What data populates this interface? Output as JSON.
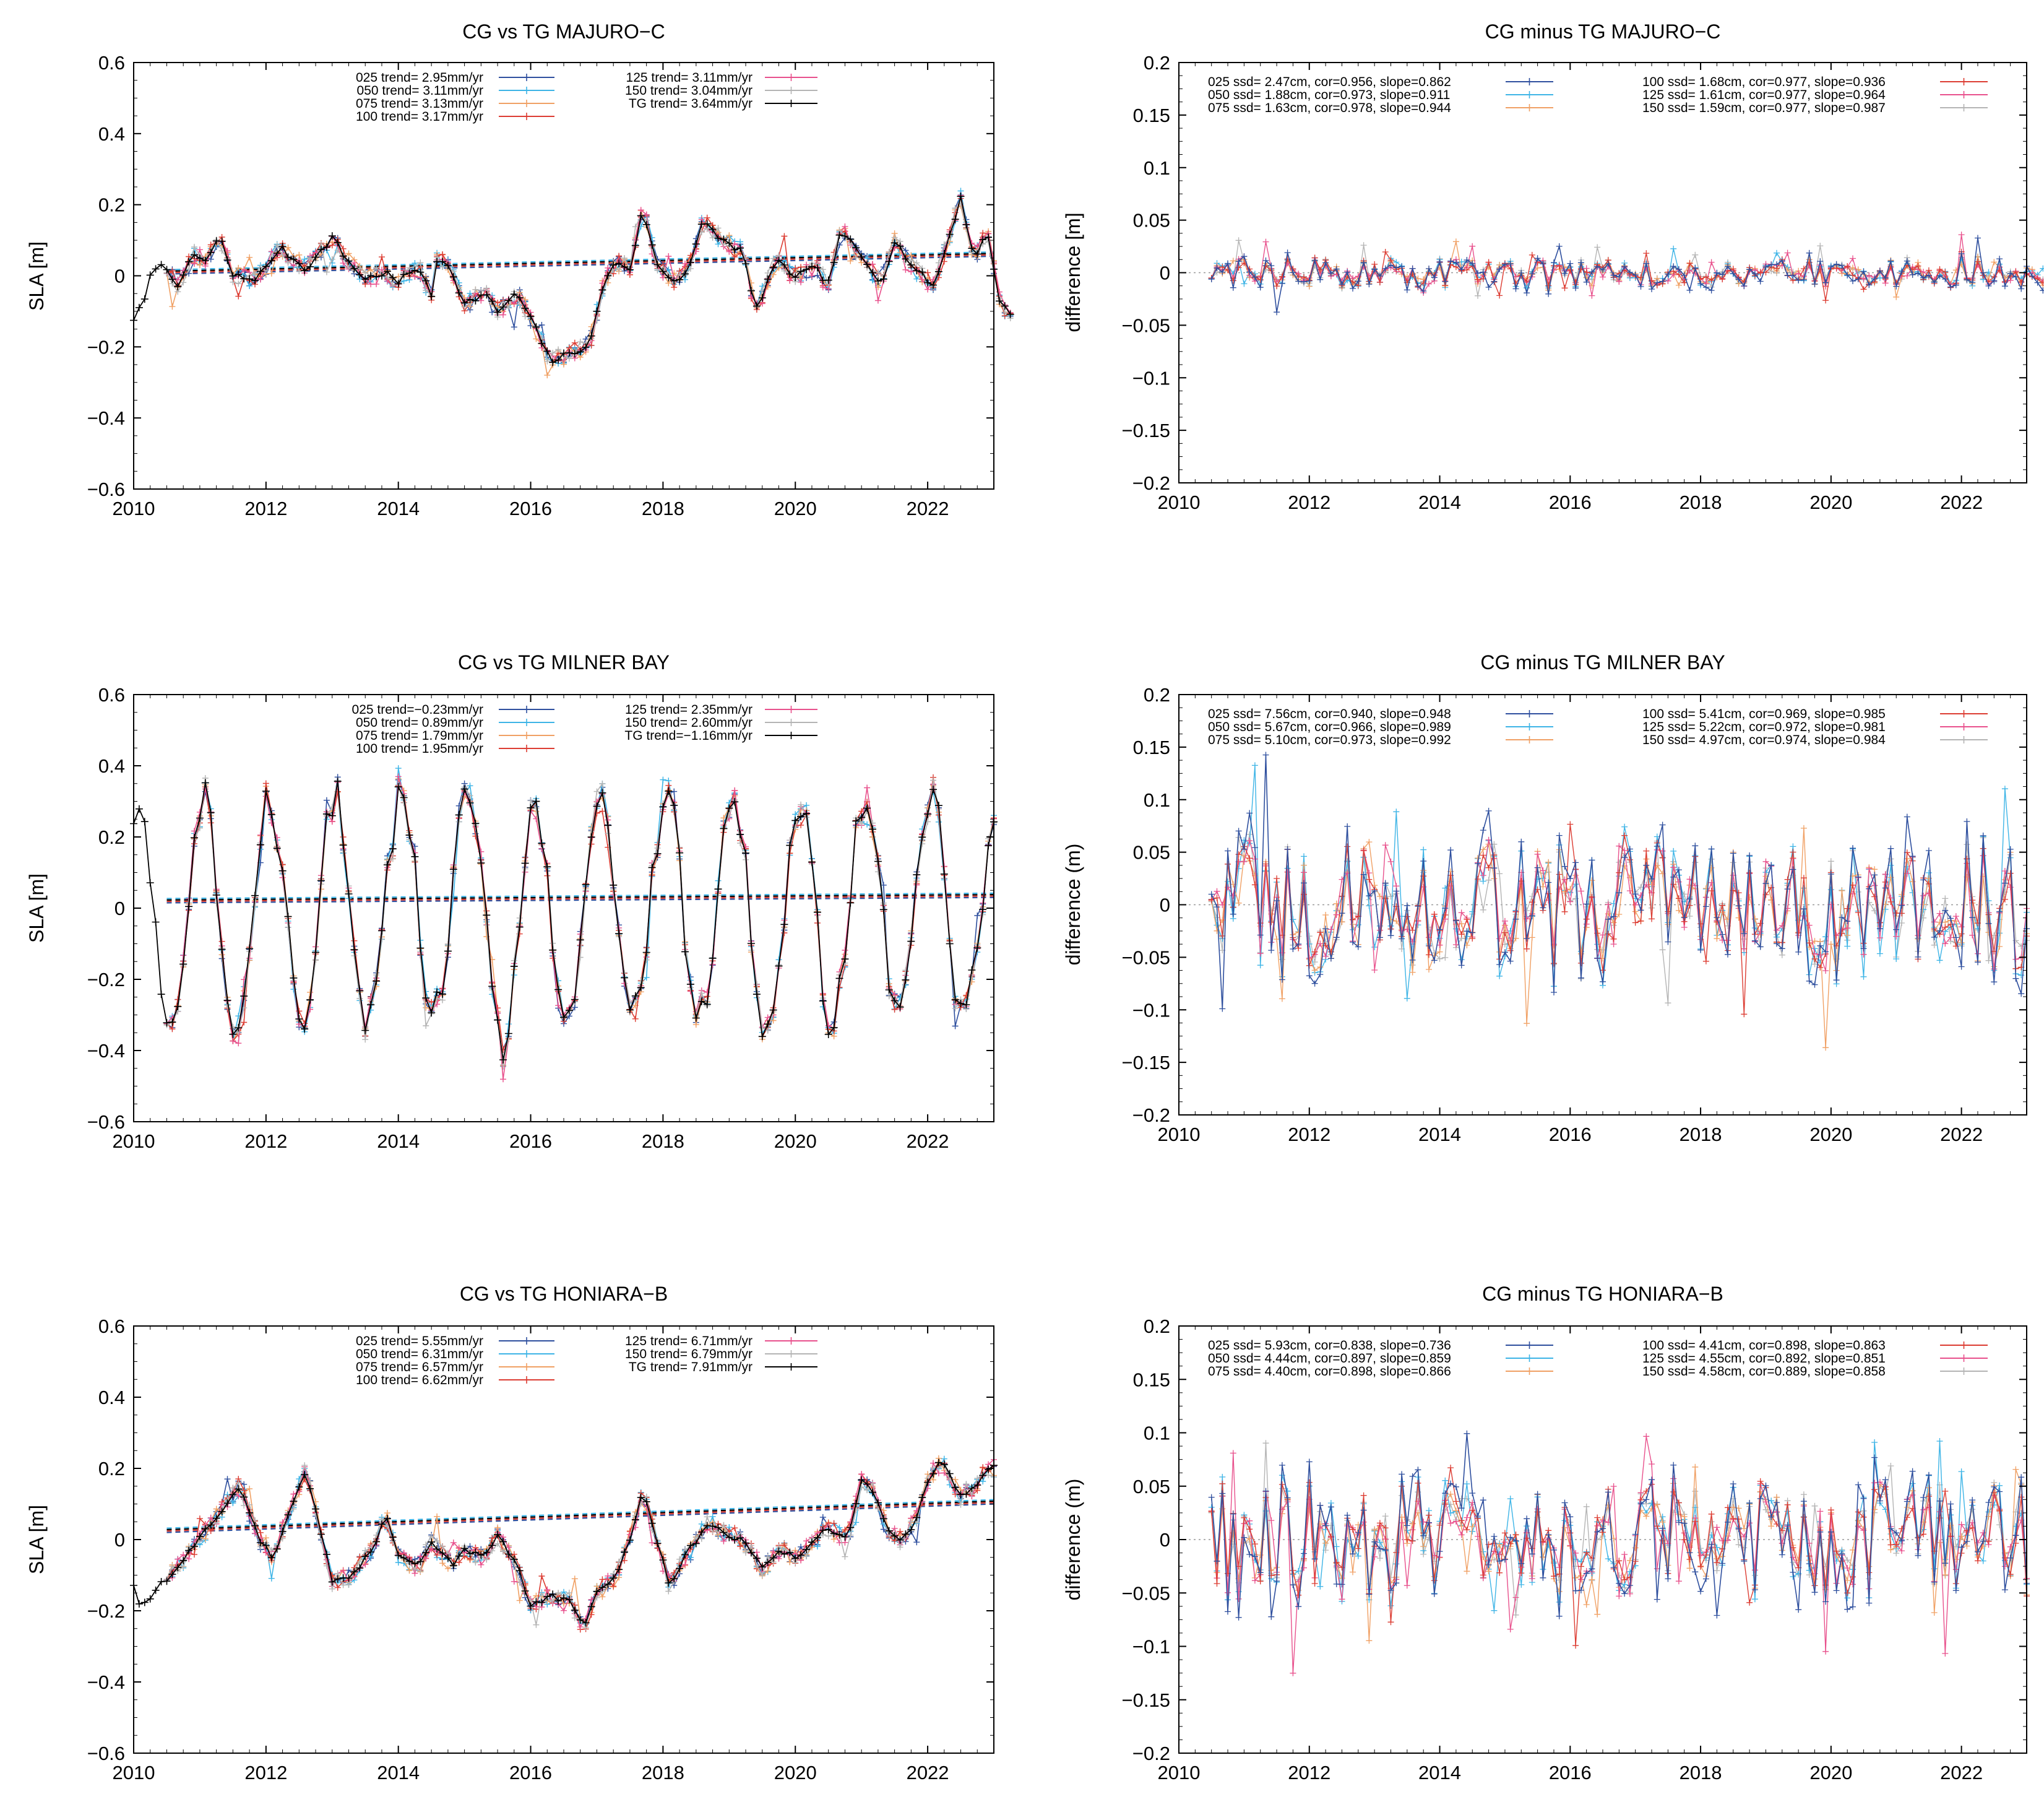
{
  "colors": {
    "s025": "#2e4f9e",
    "s050": "#3db4e6",
    "s075": "#f0a064",
    "s100": "#dc3c32",
    "s125": "#e8508c",
    "s150": "#b4b4b4",
    "tg": "#000000",
    "zero": "#999999"
  },
  "chart_data": [
    {
      "id": "majuro-sla",
      "type": "line",
      "title": "CG vs TG MAJURO−C",
      "ylabel": "SLA [m]",
      "xlim": [
        2010,
        2023
      ],
      "ylim": [
        -0.6,
        0.6
      ],
      "xticks": [
        "2010",
        "2012",
        "2014",
        "2016",
        "2018",
        "2020",
        "2022"
      ],
      "yticks": [
        "0.6",
        "0.4",
        "0.2",
        "0",
        "−0.2",
        "−0.4",
        "−0.6"
      ],
      "legend": [
        {
          "label": "025 trend= 2.95mm/yr",
          "color": "s025"
        },
        {
          "label": "050 trend= 3.11mm/yr",
          "color": "s050"
        },
        {
          "label": "075 trend= 3.13mm/yr",
          "color": "s075"
        },
        {
          "label": "100 trend= 3.17mm/yr",
          "color": "s100"
        },
        {
          "label": "125 trend= 3.11mm/yr",
          "color": "s125"
        },
        {
          "label": "150 trend= 3.04mm/yr",
          "color": "s150"
        },
        {
          "label": "TG trend= 3.64mm/yr",
          "color": "tg"
        }
      ],
      "trend": [
        0.005,
        0.055
      ],
      "cg_start": 2010.5,
      "tg_start": 2010.0,
      "anchors": [
        [
          2010.0,
          -0.12
        ],
        [
          2010.15,
          -0.08
        ],
        [
          2010.3,
          0.03
        ],
        [
          2010.5,
          0.02
        ],
        [
          2010.7,
          -0.03
        ],
        [
          2010.9,
          0.06
        ],
        [
          2011.1,
          0.04
        ],
        [
          2011.3,
          0.11
        ],
        [
          2011.5,
          0.0
        ],
        [
          2011.8,
          -0.01
        ],
        [
          2012.0,
          0.02
        ],
        [
          2012.2,
          0.08
        ],
        [
          2012.4,
          0.05
        ],
        [
          2012.6,
          0.02
        ],
        [
          2012.8,
          0.06
        ],
        [
          2013.0,
          0.11
        ],
        [
          2013.2,
          0.05
        ],
        [
          2013.5,
          -0.01
        ],
        [
          2013.8,
          0.01
        ],
        [
          2014.0,
          -0.02
        ],
        [
          2014.3,
          0.03
        ],
        [
          2014.5,
          -0.06
        ],
        [
          2014.6,
          0.06
        ],
        [
          2014.8,
          0.02
        ],
        [
          2015.0,
          -0.08
        ],
        [
          2015.3,
          -0.05
        ],
        [
          2015.5,
          -0.1
        ],
        [
          2015.8,
          -0.05
        ],
        [
          2016.0,
          -0.12
        ],
        [
          2016.3,
          -0.24
        ],
        [
          2016.6,
          -0.22
        ],
        [
          2016.9,
          -0.19
        ],
        [
          2017.1,
          -0.02
        ],
        [
          2017.3,
          0.04
        ],
        [
          2017.5,
          0.02
        ],
        [
          2017.7,
          0.19
        ],
        [
          2017.9,
          0.03
        ],
        [
          2018.2,
          -0.02
        ],
        [
          2018.4,
          0.03
        ],
        [
          2018.6,
          0.15
        ],
        [
          2018.9,
          0.1
        ],
        [
          2019.2,
          0.07
        ],
        [
          2019.4,
          -0.1
        ],
        [
          2019.7,
          0.04
        ],
        [
          2020.0,
          0.0
        ],
        [
          2020.3,
          0.02
        ],
        [
          2020.5,
          -0.02
        ],
        [
          2020.7,
          0.13
        ],
        [
          2021.0,
          0.05
        ],
        [
          2021.3,
          -0.02
        ],
        [
          2021.5,
          0.1
        ],
        [
          2021.8,
          0.02
        ],
        [
          2022.1,
          -0.03
        ],
        [
          2022.5,
          0.22
        ],
        [
          2022.7,
          0.05
        ],
        [
          2022.9,
          0.12
        ],
        [
          2023.1,
          -0.08
        ],
        [
          2023.2,
          -0.1
        ]
      ],
      "span": [
        2010,
        2023.3
      ]
    },
    {
      "id": "majuro-diff",
      "type": "line",
      "title": "CG minus TG MAJURO−C",
      "ylabel": "difference [m]",
      "xlim": [
        2010,
        2023
      ],
      "ylim": [
        -0.2,
        0.2
      ],
      "xticks": [
        "2010",
        "2012",
        "2014",
        "2016",
        "2018",
        "2020",
        "2022"
      ],
      "yticks": [
        "0.2",
        "0.15",
        "0.1",
        "0.05",
        "0",
        "−0.05",
        "−0.1",
        "−0.15",
        "−0.2"
      ],
      "legend": [
        {
          "label": "025 ssd= 2.47cm, cor=0.956, slope=0.862",
          "color": "s025"
        },
        {
          "label": "050 ssd= 1.88cm, cor=0.973, slope=0.911",
          "color": "s050"
        },
        {
          "label": "075 ssd= 1.63cm, cor=0.978, slope=0.944",
          "color": "s075"
        },
        {
          "label": "100 ssd= 1.68cm, cor=0.977, slope=0.936",
          "color": "s100"
        },
        {
          "label": "125 ssd= 1.61cm, cor=0.977, slope=0.964",
          "color": "s125"
        },
        {
          "label": "150 ssd= 1.59cm, cor=0.977, slope=0.987",
          "color": "s150"
        }
      ],
      "noise": 0.012,
      "noiseHi": 0.025,
      "span": [
        2010.5,
        2023.3
      ]
    },
    {
      "id": "milner-sla",
      "type": "line",
      "title": "CG vs TG MILNER BAY",
      "ylabel": "SLA [m]",
      "xlim": [
        2010,
        2023
      ],
      "ylim": [
        -0.6,
        0.6
      ],
      "xticks": [
        "2010",
        "2012",
        "2014",
        "2016",
        "2018",
        "2020",
        "2022"
      ],
      "yticks": [
        "0.6",
        "0.4",
        "0.2",
        "0",
        "−0.2",
        "−0.4",
        "−0.6"
      ],
      "legend": [
        {
          "label": "025 trend=−0.23mm/yr",
          "color": "s025"
        },
        {
          "label": "050 trend= 0.89mm/yr",
          "color": "s050"
        },
        {
          "label": "075 trend= 1.79mm/yr",
          "color": "s075"
        },
        {
          "label": "100 trend= 1.95mm/yr",
          "color": "s100"
        },
        {
          "label": "125 trend= 2.35mm/yr",
          "color": "s125"
        },
        {
          "label": "150 trend= 2.60mm/yr",
          "color": "s150"
        },
        {
          "label": "TG trend=−1.16mm/yr",
          "color": "tg"
        }
      ],
      "trend": [
        0.015,
        0.03
      ],
      "cg_start": 2010.5,
      "tg_start": 2010.0,
      "seasonal": {
        "amp": 0.31,
        "peak": 2011.05
      },
      "span": [
        2010,
        2023
      ]
    },
    {
      "id": "milner-diff",
      "type": "line",
      "title": "CG minus TG MILNER BAY",
      "ylabel": "difference (m)",
      "xlim": [
        2010,
        2023
      ],
      "ylim": [
        -0.2,
        0.2
      ],
      "xticks": [
        "2010",
        "2012",
        "2014",
        "2016",
        "2018",
        "2020",
        "2022"
      ],
      "yticks": [
        "0.2",
        "0.15",
        "0.1",
        "0.05",
        "0",
        "−0.05",
        "−0.1",
        "−0.15",
        "−0.2"
      ],
      "legend": [
        {
          "label": "025 ssd= 7.56cm, cor=0.940, slope=0.948",
          "color": "s025"
        },
        {
          "label": "050 ssd= 5.67cm, cor=0.966, slope=0.989",
          "color": "s050"
        },
        {
          "label": "075 ssd= 5.10cm, cor=0.973, slope=0.992",
          "color": "s075"
        },
        {
          "label": "100 ssd= 5.41cm, cor=0.969, slope=0.985",
          "color": "s100"
        },
        {
          "label": "125 ssd= 5.22cm, cor=0.972, slope=0.981",
          "color": "s125"
        },
        {
          "label": "150 ssd= 4.97cm, cor=0.974, slope=0.984",
          "color": "s150"
        }
      ],
      "noise": 0.055,
      "noiseHi": 0.09,
      "span": [
        2010.5,
        2023
      ]
    },
    {
      "id": "honiara-sla",
      "type": "line",
      "title": "CG vs TG HONIARA−B",
      "ylabel": "SLA [m]",
      "xlim": [
        2010,
        2023
      ],
      "ylim": [
        -0.6,
        0.6
      ],
      "xticks": [
        "2010",
        "2012",
        "2014",
        "2016",
        "2018",
        "2020",
        "2022"
      ],
      "yticks": [
        "0.6",
        "0.4",
        "0.2",
        "0",
        "−0.2",
        "−0.4",
        "−0.6"
      ],
      "legend": [
        {
          "label": "025 trend= 5.55mm/yr",
          "color": "s025"
        },
        {
          "label": "050 trend= 6.31mm/yr",
          "color": "s050"
        },
        {
          "label": "075 trend= 6.57mm/yr",
          "color": "s075"
        },
        {
          "label": "100 trend= 6.62mm/yr",
          "color": "s100"
        },
        {
          "label": "125 trend= 6.71mm/yr",
          "color": "s125"
        },
        {
          "label": "150 trend= 6.79mm/yr",
          "color": "s150"
        },
        {
          "label": "TG trend= 7.91mm/yr",
          "color": "tg"
        }
      ],
      "trend": [
        0.02,
        0.1
      ],
      "cg_start": 2010.5,
      "tg_start": 2010.0,
      "anchors": [
        [
          2010.0,
          -0.13
        ],
        [
          2010.1,
          -0.19
        ],
        [
          2010.4,
          -0.13
        ],
        [
          2010.7,
          -0.07
        ],
        [
          2011.0,
          0.0
        ],
        [
          2011.3,
          0.08
        ],
        [
          2011.6,
          0.15
        ],
        [
          2011.9,
          0.0
        ],
        [
          2012.1,
          -0.05
        ],
        [
          2012.4,
          0.1
        ],
        [
          2012.6,
          0.2
        ],
        [
          2012.8,
          0.05
        ],
        [
          2013.0,
          -0.12
        ],
        [
          2013.3,
          -0.1
        ],
        [
          2013.6,
          -0.03
        ],
        [
          2013.8,
          0.07
        ],
        [
          2014.0,
          -0.05
        ],
        [
          2014.3,
          -0.08
        ],
        [
          2014.5,
          -0.01
        ],
        [
          2014.8,
          -0.07
        ],
        [
          2015.0,
          -0.03
        ],
        [
          2015.3,
          -0.05
        ],
        [
          2015.5,
          0.01
        ],
        [
          2015.8,
          -0.08
        ],
        [
          2016.0,
          -0.18
        ],
        [
          2016.3,
          -0.16
        ],
        [
          2016.6,
          -0.17
        ],
        [
          2016.8,
          -0.25
        ],
        [
          2017.0,
          -0.15
        ],
        [
          2017.3,
          -0.1
        ],
        [
          2017.5,
          0.0
        ],
        [
          2017.7,
          0.14
        ],
        [
          2017.9,
          0.0
        ],
        [
          2018.1,
          -0.13
        ],
        [
          2018.4,
          -0.03
        ],
        [
          2018.7,
          0.05
        ],
        [
          2018.9,
          0.02
        ],
        [
          2019.2,
          0.0
        ],
        [
          2019.5,
          -0.08
        ],
        [
          2019.8,
          -0.03
        ],
        [
          2020.0,
          -0.05
        ],
        [
          2020.3,
          0.0
        ],
        [
          2020.5,
          0.03
        ],
        [
          2020.8,
          0.0
        ],
        [
          2021.0,
          0.17
        ],
        [
          2021.2,
          0.13
        ],
        [
          2021.4,
          0.03
        ],
        [
          2021.6,
          0.0
        ],
        [
          2021.8,
          0.05
        ],
        [
          2022.0,
          0.16
        ],
        [
          2022.2,
          0.22
        ],
        [
          2022.5,
          0.12
        ],
        [
          2022.7,
          0.15
        ],
        [
          2022.9,
          0.2
        ]
      ],
      "span": [
        2010,
        2023
      ]
    },
    {
      "id": "honiara-diff",
      "type": "line",
      "title": "CG minus TG HONIARA−B",
      "ylabel": "difference (m)",
      "xlim": [
        2010,
        2023
      ],
      "ylim": [
        -0.2,
        0.2
      ],
      "xticks": [
        "2010",
        "2012",
        "2014",
        "2016",
        "2018",
        "2020",
        "2022"
      ],
      "yticks": [
        "0.2",
        "0.15",
        "0.1",
        "0.05",
        "0",
        "−0.05",
        "−0.1",
        "−0.15",
        "−0.2"
      ],
      "legend": [
        {
          "label": "025 ssd= 5.93cm, cor=0.838, slope=0.736",
          "color": "s025"
        },
        {
          "label": "050 ssd= 4.44cm, cor=0.897, slope=0.859",
          "color": "s050"
        },
        {
          "label": "075 ssd= 4.40cm, cor=0.898, slope=0.866",
          "color": "s075"
        },
        {
          "label": "100 ssd= 4.41cm, cor=0.898, slope=0.863",
          "color": "s100"
        },
        {
          "label": "125 ssd= 4.55cm, cor=0.892, slope=0.851",
          "color": "s125"
        },
        {
          "label": "150 ssd= 4.58cm, cor=0.889, slope=0.858",
          "color": "s150"
        }
      ],
      "noise": 0.045,
      "noiseHi": 0.08,
      "span": [
        2010.5,
        2023
      ]
    }
  ]
}
